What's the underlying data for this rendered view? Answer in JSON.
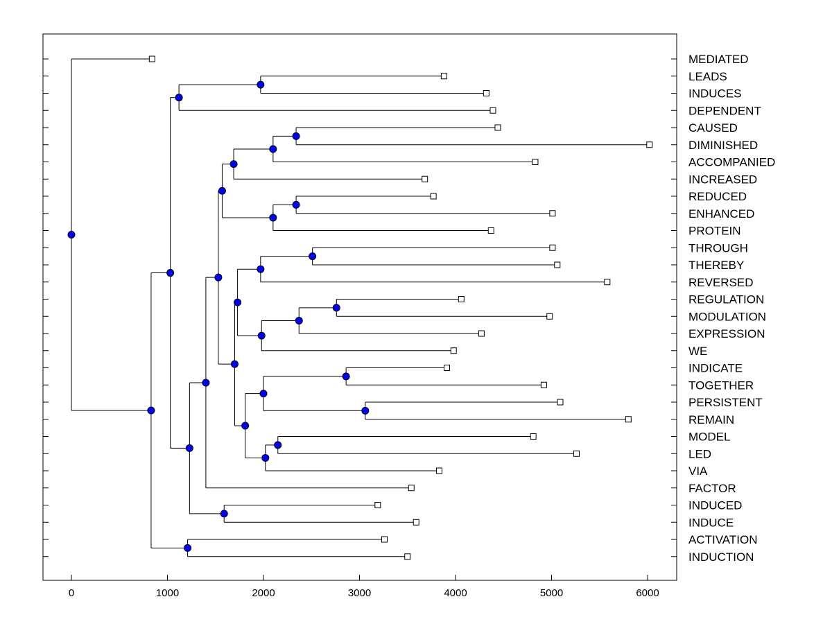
{
  "chart_data": {
    "type": "dendrogram",
    "orientation": "horizontal",
    "x_axis": {
      "ticks": [
        0,
        1000,
        2000,
        3000,
        4000,
        5000,
        6000
      ],
      "tick_labels": [
        "0",
        "1000",
        "2000",
        "3000",
        "4000",
        "5000",
        "6000"
      ],
      "range": [
        -300,
        6300
      ]
    },
    "leaves": [
      {
        "label": "MEDIATED",
        "x": 840
      },
      {
        "label": "LEADS",
        "x": 3880
      },
      {
        "label": "INDUCES",
        "x": 4320
      },
      {
        "label": "DEPENDENT",
        "x": 4390
      },
      {
        "label": "CAUSED",
        "x": 4440
      },
      {
        "label": "DIMINISHED",
        "x": 6020
      },
      {
        "label": "ACCOMPANIED",
        "x": 4830
      },
      {
        "label": "INCREASED",
        "x": 3680
      },
      {
        "label": "REDUCED",
        "x": 3770
      },
      {
        "label": "ENHANCED",
        "x": 5010
      },
      {
        "label": "PROTEIN",
        "x": 4370
      },
      {
        "label": "THROUGH",
        "x": 5010
      },
      {
        "label": "THEREBY",
        "x": 5060
      },
      {
        "label": "REVERSED",
        "x": 5580
      },
      {
        "label": "REGULATION",
        "x": 4060
      },
      {
        "label": "MODULATION",
        "x": 4980
      },
      {
        "label": "EXPRESSION",
        "x": 4270
      },
      {
        "label": "WE",
        "x": 3980
      },
      {
        "label": "INDICATE",
        "x": 3910
      },
      {
        "label": "TOGETHER",
        "x": 4920
      },
      {
        "label": "PERSISTENT",
        "x": 5090
      },
      {
        "label": "REMAIN",
        "x": 5800
      },
      {
        "label": "MODEL",
        "x": 4810
      },
      {
        "label": "LED",
        "x": 5260
      },
      {
        "label": "VIA",
        "x": 3830
      },
      {
        "label": "FACTOR",
        "x": 3540
      },
      {
        "label": "INDUCED",
        "x": 3190
      },
      {
        "label": "INDUCE",
        "x": 3590
      },
      {
        "label": "ACTIVATION",
        "x": 3260
      },
      {
        "label": "INDUCTION",
        "x": 3500
      }
    ],
    "merges": [
      {
        "id": "N1",
        "x": 1970,
        "children": [
          "L1",
          "L2"
        ]
      },
      {
        "id": "N2",
        "x": 1120,
        "children": [
          "N1",
          "L3"
        ]
      },
      {
        "id": "N3",
        "x": 2340,
        "children": [
          "L4",
          "L5"
        ]
      },
      {
        "id": "N4",
        "x": 2100,
        "children": [
          "N3",
          "L6"
        ]
      },
      {
        "id": "N5",
        "x": 1690,
        "children": [
          "N4",
          "L7"
        ]
      },
      {
        "id": "N6",
        "x": 2340,
        "children": [
          "L8",
          "L9"
        ]
      },
      {
        "id": "N7",
        "x": 2100,
        "children": [
          "N6",
          "L10"
        ]
      },
      {
        "id": "N8",
        "x": 1570,
        "children": [
          "N5",
          "N7"
        ]
      },
      {
        "id": "N9",
        "x": 2510,
        "children": [
          "L11",
          "L12"
        ]
      },
      {
        "id": "N10",
        "x": 1970,
        "children": [
          "N9",
          "L13"
        ]
      },
      {
        "id": "N11",
        "x": 2760,
        "children": [
          "L14",
          "L15"
        ]
      },
      {
        "id": "N12",
        "x": 2370,
        "children": [
          "N11",
          "L16"
        ]
      },
      {
        "id": "N13",
        "x": 1980,
        "children": [
          "N12",
          "L17"
        ]
      },
      {
        "id": "N14",
        "x": 1730,
        "children": [
          "N10",
          "N13"
        ]
      },
      {
        "id": "N15",
        "x": 2860,
        "children": [
          "L18",
          "L19"
        ]
      },
      {
        "id": "N16",
        "x": 3060,
        "children": [
          "L20",
          "L21"
        ]
      },
      {
        "id": "N17",
        "x": 2000,
        "children": [
          "N15",
          "N16"
        ]
      },
      {
        "id": "N18",
        "x": 2150,
        "children": [
          "L22",
          "L23"
        ]
      },
      {
        "id": "N19",
        "x": 2020,
        "children": [
          "N18",
          "L24"
        ]
      },
      {
        "id": "N20",
        "x": 1810,
        "children": [
          "N17",
          "N19"
        ]
      },
      {
        "id": "N21",
        "x": 1700,
        "children": [
          "N14",
          "N20"
        ]
      },
      {
        "id": "N22",
        "x": 1530,
        "children": [
          "N8",
          "N21"
        ]
      },
      {
        "id": "N23",
        "x": 1400,
        "children": [
          "N22",
          "L25"
        ]
      },
      {
        "id": "N24",
        "x": 1590,
        "children": [
          "L26",
          "L27"
        ]
      },
      {
        "id": "N25",
        "x": 1230,
        "children": [
          "N23",
          "N24"
        ]
      },
      {
        "id": "N26",
        "x": 1030,
        "children": [
          "N2",
          "N25"
        ]
      },
      {
        "id": "N27",
        "x": 1210,
        "children": [
          "L28",
          "L29"
        ]
      },
      {
        "id": "N28",
        "x": 830,
        "children": [
          "N26",
          "N27"
        ]
      },
      {
        "id": "N29",
        "x": 0,
        "children": [
          "L0",
          "N28"
        ]
      }
    ],
    "node_marker_color": "#0000ff",
    "leaf_marker": "open-square",
    "grid": false
  }
}
